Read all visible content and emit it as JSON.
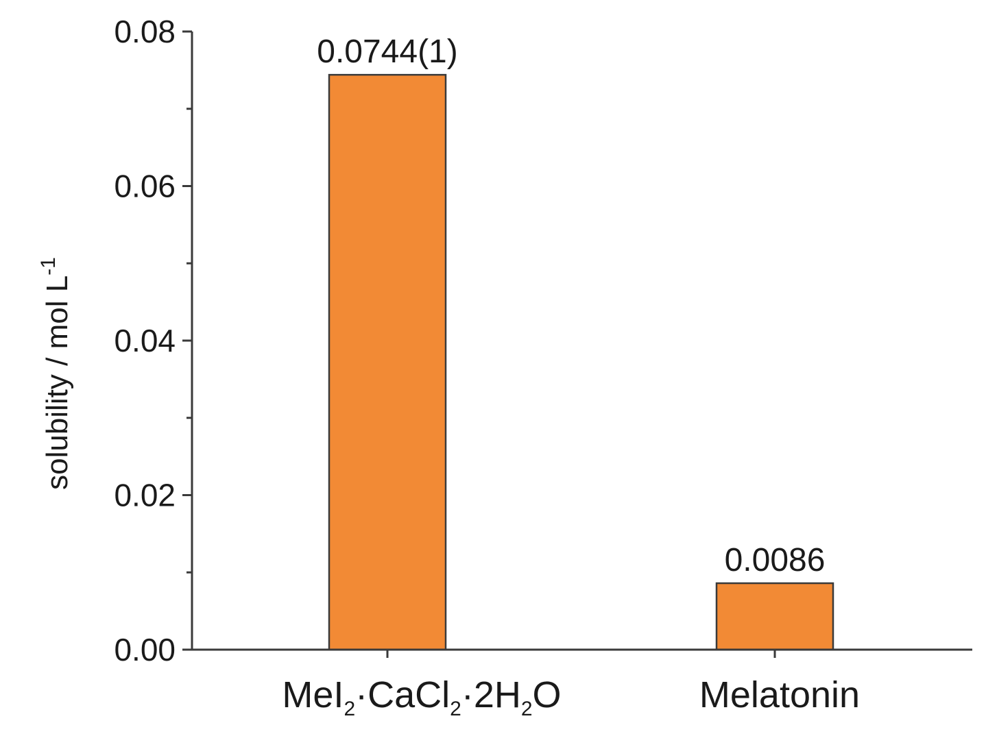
{
  "chart_data": {
    "type": "bar",
    "categories": [
      "MeI₂·CaCl₂·2H₂O",
      "Melatonin"
    ],
    "values": [
      0.0744,
      0.0086
    ],
    "data_labels": [
      "0.0744(1)",
      "0.0086"
    ],
    "ylabel": "solubility / mol L⁻¹",
    "ylim": [
      0,
      0.08
    ],
    "yticks": [
      0.0,
      0.02,
      0.04,
      0.06,
      0.08
    ],
    "ytick_labels": [
      "0.00",
      "0.02",
      "0.04",
      "0.06",
      "0.08"
    ],
    "grid": false,
    "bar_color": "#f28a35",
    "bar_edge_color": "#3a3a3a",
    "axis_color": "#3a3a3a"
  }
}
